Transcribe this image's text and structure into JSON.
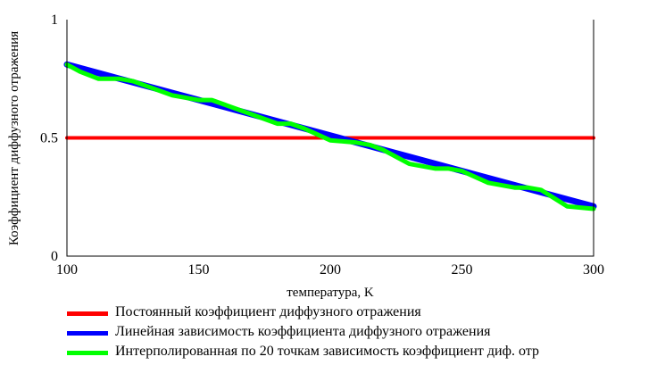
{
  "chart_data": {
    "type": "line",
    "xlabel": "температура, K",
    "ylabel": "Коэффициент диффузного отражения",
    "xlim": [
      100,
      300
    ],
    "ylim": [
      0,
      1
    ],
    "x_ticks": [
      100,
      150,
      200,
      250,
      300
    ],
    "y_ticks": [
      0,
      0.5,
      1
    ],
    "y_tick_labels": [
      "0",
      "0.5",
      "1"
    ],
    "grid": false,
    "legend_position": "bottom",
    "series": [
      {
        "name": "Постоянный коэффициент диффузного отражения",
        "color": "#ff0000",
        "x": [
          100,
          300
        ],
        "y": [
          0.5,
          0.5
        ]
      },
      {
        "name": "Линейная зависимость коэффициента диффузного отражения",
        "color": "#0000ff",
        "x": [
          100,
          300
        ],
        "y": [
          0.81,
          0.21
        ]
      },
      {
        "name": "Интерполированная по 20 точкам зависимость коэффициент диф. отр",
        "color": "#00ff00",
        "x": [
          100,
          105,
          112,
          120,
          125,
          130,
          140,
          150,
          155,
          160,
          170,
          180,
          185,
          190,
          200,
          210,
          215,
          220,
          230,
          240,
          245,
          250,
          260,
          270,
          275,
          280,
          290,
          300
        ],
        "y": [
          0.81,
          0.78,
          0.75,
          0.75,
          0.74,
          0.72,
          0.68,
          0.66,
          0.66,
          0.64,
          0.6,
          0.56,
          0.56,
          0.54,
          0.49,
          0.48,
          0.47,
          0.45,
          0.39,
          0.37,
          0.37,
          0.36,
          0.31,
          0.29,
          0.29,
          0.28,
          0.21,
          0.2
        ]
      }
    ]
  }
}
